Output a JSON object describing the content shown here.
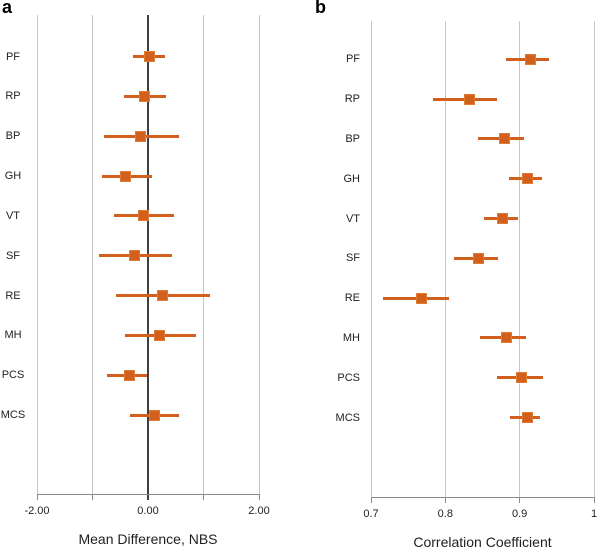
{
  "colors": {
    "background": "#ffffff",
    "accent": "#d0601b",
    "marker_border": "#e07b31",
    "gridline": "#c8c6c6",
    "zero_line": "#3f3f3f",
    "axis": "#8a8a8a",
    "text": "#1f1f1f"
  },
  "chart_data": [
    {
      "type": "scatter",
      "panel_label": "a",
      "xlabel": "Mean Difference, NBS",
      "xlim": [
        -2.0,
        2.0
      ],
      "xticks": [
        -2.0,
        -1.0,
        0.0,
        1.0,
        2.0
      ],
      "xtick_labels": [
        "-2.00",
        "",
        "0.00",
        "",
        "2.00"
      ],
      "zero_line": 0.0,
      "grid": "vertical",
      "legend": "none",
      "categories": [
        "PF",
        "RP",
        "BP",
        "GH",
        "VT",
        "SF",
        "RE",
        "MH",
        "PCS",
        "MCS"
      ],
      "values": [
        0.03,
        -0.07,
        -0.14,
        -0.4,
        -0.08,
        -0.25,
        0.26,
        0.2,
        -0.33,
        0.12
      ],
      "ci_low": [
        -0.27,
        -0.44,
        -0.79,
        -0.83,
        -0.61,
        -0.89,
        -0.58,
        -0.42,
        -0.74,
        -0.32
      ],
      "ci_high": [
        0.3,
        0.32,
        0.55,
        0.07,
        0.47,
        0.43,
        1.11,
        0.86,
        -0.01,
        0.56
      ]
    },
    {
      "type": "scatter",
      "panel_label": "b",
      "xlabel": "Correlation Coefficient",
      "xlim": [
        0.7,
        1.0
      ],
      "xticks": [
        0.7,
        0.8,
        0.9,
        1.0
      ],
      "xtick_labels": [
        "0.7",
        "0.8",
        "0.9",
        "1"
      ],
      "zero_line": null,
      "grid": "vertical",
      "legend": "none",
      "categories": [
        "PF",
        "RP",
        "BP",
        "GH",
        "VT",
        "SF",
        "RE",
        "MH",
        "PCS",
        "MCS"
      ],
      "values": [
        0.914,
        0.833,
        0.879,
        0.911,
        0.877,
        0.845,
        0.768,
        0.882,
        0.903,
        0.91
      ],
      "ci_low": [
        0.881,
        0.784,
        0.844,
        0.886,
        0.852,
        0.812,
        0.716,
        0.847,
        0.87,
        0.887
      ],
      "ci_high": [
        0.939,
        0.87,
        0.906,
        0.93,
        0.898,
        0.871,
        0.805,
        0.909,
        0.932,
        0.927
      ]
    }
  ]
}
